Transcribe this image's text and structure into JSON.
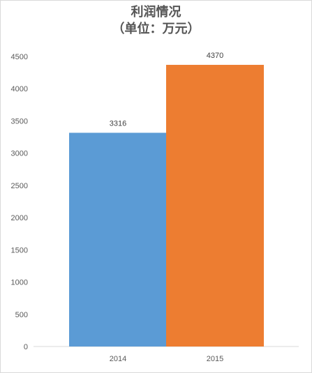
{
  "chart_data": {
    "type": "bar",
    "title": "利润情况",
    "subtitle": "（单位：万元）",
    "categories": [
      "2014",
      "2015"
    ],
    "values": [
      3316,
      4370
    ],
    "bar_colors": [
      "#5b9bd5",
      "#ed7d31"
    ],
    "ylim": [
      0,
      4500
    ],
    "yticks": [
      0,
      500,
      1000,
      1500,
      2000,
      2500,
      3000,
      3500,
      4000,
      4500
    ],
    "data_labels": [
      "3316",
      "4370"
    ],
    "grid": false,
    "legend": "none"
  }
}
